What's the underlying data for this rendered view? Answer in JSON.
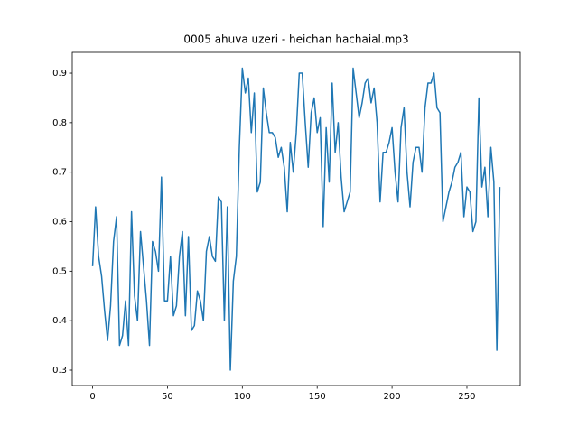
{
  "chart_data": {
    "type": "line",
    "title": "0005 ahuva uzeri - heichan hachaial.mp3",
    "x": [
      0,
      2,
      4,
      6,
      8,
      10,
      12,
      14,
      16,
      18,
      20,
      22,
      24,
      26,
      28,
      30,
      32,
      34,
      36,
      38,
      40,
      42,
      44,
      46,
      48,
      50,
      52,
      54,
      56,
      58,
      60,
      62,
      64,
      66,
      68,
      70,
      72,
      74,
      76,
      78,
      80,
      82,
      84,
      86,
      88,
      90,
      92,
      94,
      96,
      98,
      100,
      102,
      104,
      106,
      108,
      110,
      112,
      114,
      116,
      118,
      120,
      122,
      124,
      126,
      128,
      130,
      132,
      134,
      136,
      138,
      140,
      142,
      144,
      146,
      148,
      150,
      152,
      154,
      156,
      158,
      160,
      162,
      164,
      166,
      168,
      170,
      172,
      174,
      176,
      178,
      180,
      182,
      184,
      186,
      188,
      190,
      192,
      194,
      196,
      198,
      200,
      202,
      204,
      206,
      208,
      210,
      212,
      214,
      216,
      218,
      220,
      222,
      224,
      226,
      228,
      230,
      232,
      234,
      236,
      238,
      240,
      242,
      244,
      246,
      248,
      250,
      252,
      254,
      256,
      258,
      260,
      262,
      264,
      266,
      268,
      270,
      272
    ],
    "series": [
      {
        "color": "#1f77b4",
        "values": [
          0.51,
          0.63,
          0.53,
          0.49,
          0.42,
          0.36,
          0.43,
          0.56,
          0.61,
          0.35,
          0.37,
          0.44,
          0.35,
          0.62,
          0.45,
          0.4,
          0.58,
          0.51,
          0.44,
          0.35,
          0.56,
          0.54,
          0.5,
          0.69,
          0.44,
          0.44,
          0.53,
          0.41,
          0.43,
          0.53,
          0.58,
          0.41,
          0.57,
          0.38,
          0.39,
          0.46,
          0.44,
          0.4,
          0.54,
          0.57,
          0.53,
          0.52,
          0.65,
          0.64,
          0.4,
          0.63,
          0.3,
          0.48,
          0.53,
          0.75,
          0.91,
          0.86,
          0.89,
          0.78,
          0.86,
          0.66,
          0.68,
          0.87,
          0.82,
          0.78,
          0.78,
          0.77,
          0.73,
          0.75,
          0.71,
          0.62,
          0.76,
          0.7,
          0.78,
          0.9,
          0.9,
          0.8,
          0.71,
          0.82,
          0.85,
          0.78,
          0.81,
          0.59,
          0.79,
          0.68,
          0.88,
          0.74,
          0.8,
          0.69,
          0.62,
          0.64,
          0.66,
          0.91,
          0.86,
          0.81,
          0.84,
          0.88,
          0.89,
          0.84,
          0.87,
          0.8,
          0.64,
          0.74,
          0.74,
          0.76,
          0.79,
          0.7,
          0.64,
          0.79,
          0.83,
          0.7,
          0.63,
          0.72,
          0.75,
          0.75,
          0.7,
          0.83,
          0.88,
          0.88,
          0.9,
          0.83,
          0.82,
          0.6,
          0.63,
          0.66,
          0.68,
          0.71,
          0.72,
          0.74,
          0.61,
          0.67,
          0.66,
          0.58,
          0.6,
          0.85,
          0.67,
          0.71,
          0.61,
          0.75,
          0.68,
          0.34,
          0.67
        ]
      }
    ],
    "xlim": [
      -13.6,
      285.6
    ],
    "ylim": [
      0.269,
      0.942
    ],
    "xticks": [
      0,
      50,
      100,
      150,
      200,
      250
    ],
    "yticks": [
      0.3,
      0.4,
      0.5,
      0.6,
      0.7,
      0.8,
      0.9
    ]
  }
}
